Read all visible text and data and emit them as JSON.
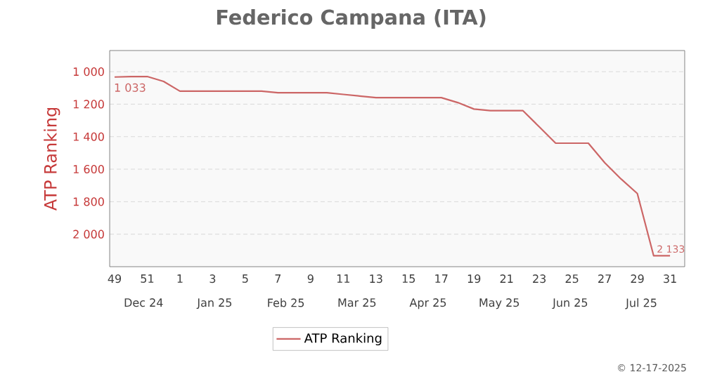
{
  "chart_data": {
    "type": "line",
    "title": "Federico Campana (ITA)",
    "ylabel": "ATP Ranking",
    "categories": [
      "49",
      null,
      "51",
      null,
      "1",
      null,
      "3",
      null,
      "5",
      null,
      "7",
      null,
      "9",
      null,
      "11",
      null,
      "13",
      null,
      "15",
      null,
      "17",
      null,
      "19",
      null,
      "21",
      null,
      "23",
      null,
      "25",
      null,
      "27",
      null,
      "29",
      null,
      "31"
    ],
    "series": [
      {
        "name": "ATP Ranking",
        "color": "#cc6666",
        "values": [
          1033,
          1030,
          1030,
          1060,
          1120,
          1120,
          1120,
          1120,
          1120,
          1120,
          1130,
          1130,
          1130,
          1130,
          1140,
          1150,
          1160,
          1160,
          1160,
          1160,
          1160,
          1190,
          1230,
          1240,
          1240,
          1240,
          1340,
          1440,
          1440,
          1440,
          1560,
          1660,
          1750,
          2133,
          2133
        ],
        "value_labels": [
          "1 033",
          null,
          null,
          null,
          null,
          null,
          null,
          null,
          null,
          null,
          null,
          null,
          null,
          null,
          null,
          null,
          null,
          null,
          null,
          null,
          null,
          null,
          null,
          null,
          null,
          null,
          null,
          null,
          null,
          null,
          null,
          null,
          null,
          "2 133",
          null
        ]
      }
    ],
    "ylim": [
      2200,
      870
    ],
    "yticks": [
      {
        "value": 1000,
        "label": "1 000"
      },
      {
        "value": 1200,
        "label": "1 200"
      },
      {
        "value": 1400,
        "label": "1 400"
      },
      {
        "value": 1600,
        "label": "1 600"
      },
      {
        "value": 1800,
        "label": "1 800"
      },
      {
        "value": 2000,
        "label": "2 000"
      }
    ],
    "grid": "y",
    "legend": "bottom",
    "marker": "none",
    "line_style": "solid",
    "annotations": [
      "Dec 24",
      "Jan 25",
      "Feb 25",
      "Mar 25",
      "Apr 25",
      "May 25",
      "Jun 25",
      "Jul 25",
      "© 12-17-2025"
    ]
  }
}
